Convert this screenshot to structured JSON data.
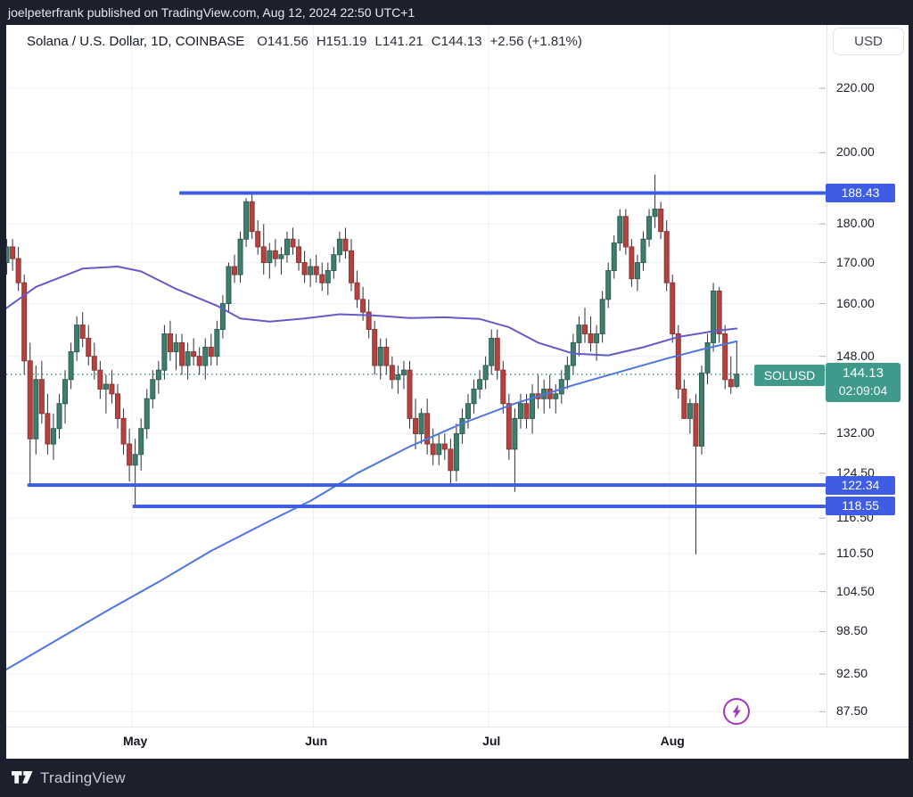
{
  "top_bar": {
    "attribution": "joelpeterfrank published on TradingView.com, Aug 12, 2024 22:50 UTC+1"
  },
  "header": {
    "symbol_title": "Solana / U.S. Dollar, 1D, COINBASE",
    "ohlc": {
      "o": "O141.56",
      "h": "H151.19",
      "l": "L141.21",
      "c": "C144.13",
      "change": "+2.56 (+1.81%)"
    },
    "currency_button": "USD"
  },
  "price_axis": {
    "symbol_flag": "SOLUSD",
    "last": {
      "price": "144.13",
      "countdown": "02:09:04"
    },
    "ticks": [
      {
        "label": "220.00",
        "price": 220.0
      },
      {
        "label": "200.00",
        "price": 200.0
      },
      {
        "label": "180.00",
        "price": 180.0
      },
      {
        "label": "170.00",
        "price": 170.0
      },
      {
        "label": "160.00",
        "price": 160.0
      },
      {
        "label": "148.00",
        "price": 148.0
      },
      {
        "label": "132.00",
        "price": 132.0
      },
      {
        "label": "124.50",
        "price": 124.5
      },
      {
        "label": "116.50",
        "price": 116.5
      },
      {
        "label": "110.50",
        "price": 110.5
      },
      {
        "label": "104.50",
        "price": 104.5
      },
      {
        "label": "98.50",
        "price": 98.5
      },
      {
        "label": "92.50",
        "price": 92.5
      },
      {
        "label": "87.50",
        "price": 87.5
      }
    ]
  },
  "time_axis": {
    "months": [
      "May",
      "Jun",
      "Jul",
      "Aug"
    ]
  },
  "footer": {
    "brand": "TradingView",
    "logo_icon": "tradingview-logo"
  },
  "quick_panel": {
    "icon": "lightning"
  },
  "colors": {
    "accent_blue": "#3e5ce4",
    "teal": "#409a8c",
    "purple_button": "#a236c0",
    "candle_up": "#3f7e6e",
    "candle_up_border": "#2b5f51",
    "candle_down": "#b5423e",
    "candle_down_border": "#8c3532",
    "wick": "#2b2f3a",
    "ma_slow": "#645bc9",
    "ma_fast": "#4e76e0",
    "dark_chrome": "#1c202c"
  },
  "chart_data": {
    "type": "candlestick",
    "symbol": "SOLUSD",
    "exchange": "COINBASE",
    "interval": "1D",
    "start_date": "2024-04-08",
    "title": "Solana / U.S. Dollar, 1D, COINBASE",
    "scale": {
      "type": "log",
      "anchors": [
        {
          "price": 220.0,
          "y": 99.0
        },
        {
          "price": 87.5,
          "y": 798.3
        }
      ]
    },
    "grid": true,
    "last_price": 144.13,
    "month_starts": [
      {
        "label": "May",
        "index": 23
      },
      {
        "label": "Jun",
        "index": 54
      },
      {
        "label": "Jul",
        "index": 84
      },
      {
        "label": "Aug",
        "index": 115
      }
    ],
    "horizontal_lines": [
      {
        "label": "188.43",
        "price": 188.43,
        "start_index": 31
      },
      {
        "label": "122.34",
        "price": 122.34,
        "start_index": 5
      },
      {
        "label": "118.55",
        "price": 118.55,
        "start_index": 23
      }
    ],
    "moving_averages": [
      {
        "name": "ma_slow",
        "points": [
          [
            0,
            158
          ],
          [
            6,
            164
          ],
          [
            14,
            168.5
          ],
          [
            20,
            169
          ],
          [
            24,
            167.8
          ],
          [
            30,
            163.5
          ],
          [
            37,
            159.5
          ],
          [
            41,
            156.5
          ],
          [
            46,
            155.8
          ],
          [
            52,
            156.5
          ],
          [
            58,
            157.5
          ],
          [
            64,
            157.2
          ],
          [
            70,
            156.6
          ],
          [
            76,
            156.8
          ],
          [
            82,
            156.4
          ],
          [
            87,
            154.5
          ],
          [
            92,
            151
          ],
          [
            98,
            148.6
          ],
          [
            104,
            148.2
          ],
          [
            110,
            150
          ],
          [
            116,
            152.3
          ],
          [
            122,
            153.6
          ],
          [
            126,
            154.2
          ]
        ]
      },
      {
        "name": "ma_fast",
        "points": [
          [
            0,
            92.7
          ],
          [
            9,
            97
          ],
          [
            18,
            101.5
          ],
          [
            27,
            106
          ],
          [
            36,
            111
          ],
          [
            46,
            116
          ],
          [
            53,
            119.5
          ],
          [
            61,
            124.5
          ],
          [
            70,
            129.5
          ],
          [
            79,
            134
          ],
          [
            88,
            138
          ],
          [
            98,
            141.8
          ],
          [
            107,
            145
          ],
          [
            114,
            147.5
          ],
          [
            120,
            149.5
          ],
          [
            126,
            151.3
          ]
        ]
      }
    ],
    "candles": [
      [
        181,
        184,
        167,
        170
      ],
      [
        170,
        176,
        167,
        174
      ],
      [
        174,
        176,
        168,
        171
      ],
      [
        171,
        174,
        163,
        165
      ],
      [
        165,
        167,
        144,
        147
      ],
      [
        147,
        151,
        122.34,
        131
      ],
      [
        131,
        146,
        128,
        143
      ],
      [
        143,
        147,
        134,
        136
      ],
      [
        136,
        140,
        128,
        130
      ],
      [
        130,
        136,
        127,
        133
      ],
      [
        133,
        140,
        131,
        138
      ],
      [
        138,
        145,
        134,
        143
      ],
      [
        143,
        151,
        141,
        149
      ],
      [
        149,
        157,
        147,
        155
      ],
      [
        155,
        158,
        150,
        152
      ],
      [
        152,
        155,
        146,
        148
      ],
      [
        148,
        151,
        143,
        145
      ],
      [
        145,
        147,
        139,
        141
      ],
      [
        141,
        144,
        136,
        142
      ],
      [
        142,
        145,
        138,
        140
      ],
      [
        140,
        142,
        133,
        135
      ],
      [
        135,
        137,
        128,
        130
      ],
      [
        130,
        133,
        123,
        126
      ],
      [
        126,
        131,
        118.55,
        128
      ],
      [
        128,
        135,
        125,
        133
      ],
      [
        133,
        141,
        131,
        139
      ],
      [
        139,
        145,
        137,
        143
      ],
      [
        143,
        147,
        140,
        145
      ],
      [
        145,
        155,
        143,
        153
      ],
      [
        153,
        156,
        147,
        149
      ],
      [
        149,
        153,
        145,
        151
      ],
      [
        151,
        153,
        144,
        146
      ],
      [
        146,
        151,
        143,
        149
      ],
      [
        149,
        152,
        146,
        148
      ],
      [
        148,
        150,
        144,
        146
      ],
      [
        146,
        152,
        143,
        150
      ],
      [
        150,
        153,
        146,
        148
      ],
      [
        148,
        156,
        146,
        154
      ],
      [
        154,
        162,
        152,
        160
      ],
      [
        160,
        170,
        158,
        169
      ],
      [
        169,
        172,
        165,
        167
      ],
      [
        167,
        178,
        165,
        176
      ],
      [
        176,
        187,
        174,
        186
      ],
      [
        186,
        188.43,
        176,
        178
      ],
      [
        178,
        181,
        172,
        174
      ],
      [
        174,
        180,
        167,
        170
      ],
      [
        170,
        175,
        166,
        173
      ],
      [
        173,
        176,
        169,
        171
      ],
      [
        171,
        174,
        167,
        172
      ],
      [
        172,
        178,
        170,
        176
      ],
      [
        176,
        179,
        172,
        174
      ],
      [
        174,
        176,
        168,
        170
      ],
      [
        170,
        173,
        165,
        167
      ],
      [
        167,
        171,
        164,
        169
      ],
      [
        169,
        172,
        165,
        167
      ],
      [
        167,
        170,
        163,
        165
      ],
      [
        165,
        170,
        162,
        168
      ],
      [
        168,
        174,
        166,
        172
      ],
      [
        172,
        178,
        170,
        176
      ],
      [
        176,
        179,
        171,
        173
      ],
      [
        173,
        176,
        163,
        165
      ],
      [
        165,
        168,
        159,
        161
      ],
      [
        161,
        164,
        156,
        158
      ],
      [
        158,
        161,
        152,
        154
      ],
      [
        154,
        156,
        144,
        146
      ],
      [
        146,
        152,
        143,
        150
      ],
      [
        150,
        152,
        144,
        146
      ],
      [
        146,
        148,
        141,
        143
      ],
      [
        143,
        146,
        140,
        144
      ],
      [
        144,
        147,
        141,
        145
      ],
      [
        145,
        147,
        133,
        135
      ],
      [
        135,
        139,
        129,
        132
      ],
      [
        132,
        137,
        130,
        136
      ],
      [
        136,
        139,
        128,
        130
      ],
      [
        130,
        133,
        126,
        128
      ],
      [
        128,
        132,
        126,
        130
      ],
      [
        130,
        132,
        127,
        129
      ],
      [
        129,
        131,
        122.4,
        125
      ],
      [
        125,
        134,
        123,
        132
      ],
      [
        132,
        137,
        130,
        135
      ],
      [
        135,
        140,
        133,
        138
      ],
      [
        138,
        143,
        136,
        141
      ],
      [
        141,
        145,
        139,
        143
      ],
      [
        143,
        148,
        141,
        146
      ],
      [
        146,
        154,
        144,
        152
      ],
      [
        152,
        154,
        143,
        145
      ],
      [
        145,
        147,
        136,
        138
      ],
      [
        138,
        140,
        127,
        129
      ],
      [
        129,
        137,
        121.1,
        135
      ],
      [
        135,
        140,
        133,
        138
      ],
      [
        138,
        140,
        133,
        135
      ],
      [
        135,
        142,
        132,
        140
      ],
      [
        140,
        144,
        137,
        139
      ],
      [
        139,
        143,
        136,
        141
      ],
      [
        141,
        144,
        137,
        139
      ],
      [
        139,
        142,
        136,
        140
      ],
      [
        140,
        145,
        138,
        143
      ],
      [
        143,
        148,
        141,
        146
      ],
      [
        146,
        153,
        144,
        151
      ],
      [
        151,
        157,
        148,
        155
      ],
      [
        155,
        159,
        151,
        153
      ],
      [
        153,
        157,
        149,
        151
      ],
      [
        151,
        155,
        147,
        153
      ],
      [
        153,
        163,
        151,
        161
      ],
      [
        161,
        170,
        159,
        168
      ],
      [
        168,
        177,
        166,
        175
      ],
      [
        175,
        184,
        173,
        182
      ],
      [
        182,
        184,
        172,
        174
      ],
      [
        174,
        176,
        164,
        166
      ],
      [
        166,
        172,
        163,
        170
      ],
      [
        170,
        178,
        168,
        176
      ],
      [
        176,
        184,
        174,
        182
      ],
      [
        182,
        193.63,
        179,
        184
      ],
      [
        184,
        186,
        176,
        178
      ],
      [
        178,
        181,
        163,
        165
      ],
      [
        165,
        167,
        151,
        153
      ],
      [
        153,
        155,
        139,
        141
      ],
      [
        141,
        143,
        134.9,
        135
      ],
      [
        135,
        139,
        132,
        138
      ],
      [
        138,
        140,
        110.43,
        129.6
      ],
      [
        129.6,
        146,
        128,
        144.4
      ],
      [
        144.4,
        153,
        142,
        151
      ],
      [
        151,
        165,
        149,
        163
      ],
      [
        163,
        164,
        151,
        153
      ],
      [
        153,
        155,
        141,
        143
      ],
      [
        143,
        148,
        140,
        141.5
      ],
      [
        141.56,
        151.19,
        141.21,
        144.13
      ]
    ]
  }
}
